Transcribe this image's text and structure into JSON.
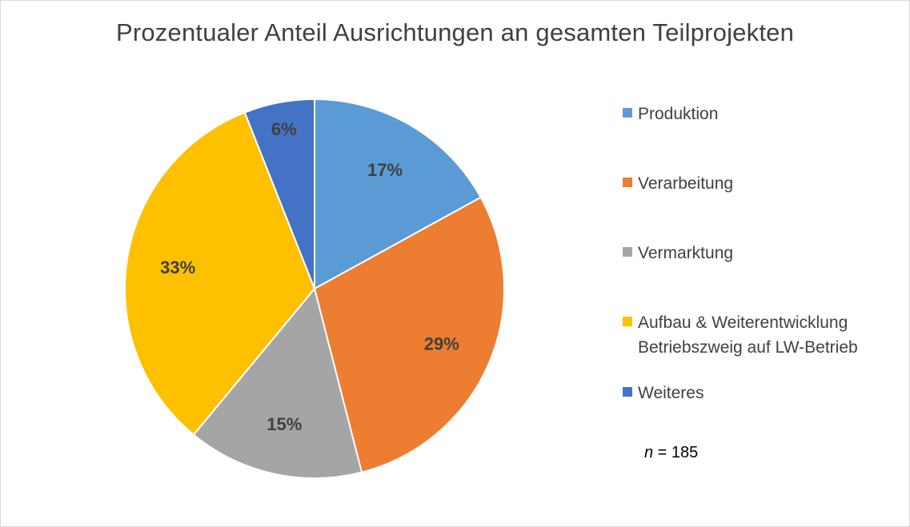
{
  "chart_data": {
    "type": "pie",
    "title": "Prozentualer Anteil Ausrichtungen an gesamten Teilprojekten",
    "slices": [
      {
        "label": "Produktion",
        "value": 17,
        "display": "17%",
        "color": "#5b9bd5"
      },
      {
        "label": "Verarbeitung",
        "value": 29,
        "display": "29%",
        "color": "#ed7d31"
      },
      {
        "label": "Vermarktung",
        "value": 15,
        "display": "15%",
        "color": "#a5a5a5"
      },
      {
        "label": "Aufbau & Weiterentwicklung\nBetriebszweig auf LW-Betrieb",
        "value": 33,
        "display": "33%",
        "color": "#ffc000"
      },
      {
        "label": "Weiteres",
        "value": 6,
        "display": "6%",
        "color": "#4472c4"
      }
    ],
    "legend_position": "right",
    "note": {
      "symbol": "n",
      "text": " = 185"
    }
  }
}
